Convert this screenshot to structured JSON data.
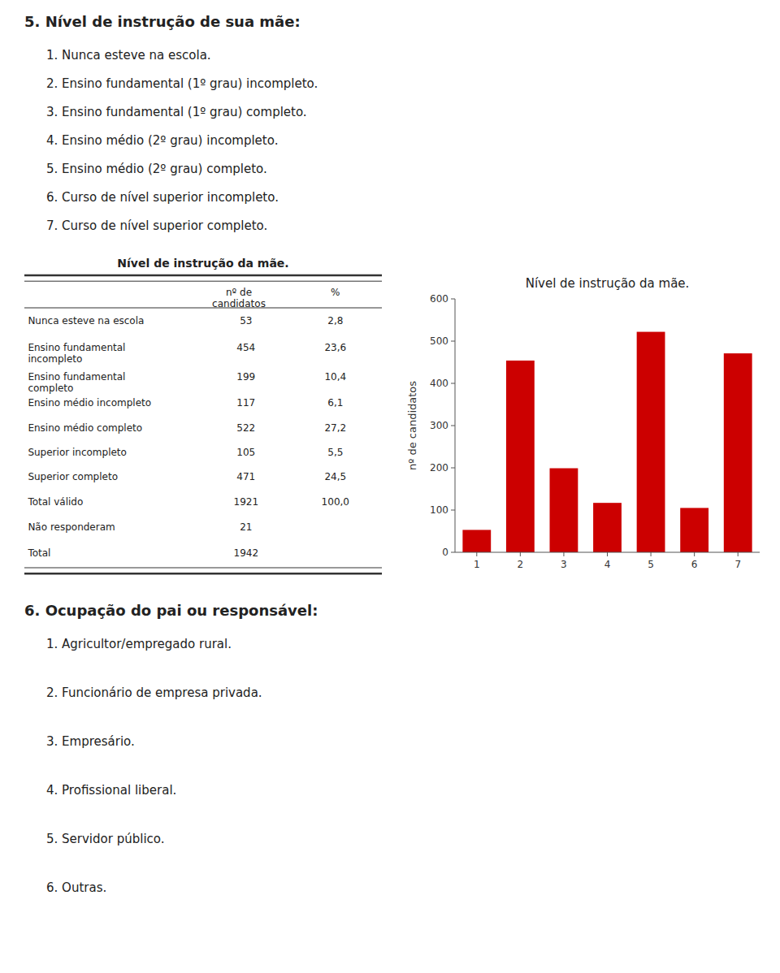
{
  "chart_data": {
    "type": "bar",
    "title": "Nível de instrução da mãe.",
    "categories": [
      "1",
      "2",
      "3",
      "4",
      "5",
      "6",
      "7"
    ],
    "values": [
      53,
      454,
      199,
      117,
      522,
      105,
      471
    ],
    "color": "#cc0000",
    "ylabel": "nº de candidatos",
    "ylim": [
      0,
      600
    ],
    "yticks": [
      0,
      100,
      200,
      300,
      400,
      500,
      600
    ],
    "grid": false
  },
  "questions": [
    {
      "title": "5. Nível de instrução de sua mãe:",
      "items": [
        "1. Nunca esteve na escola.",
        "2. Ensino fundamental (1º grau) incompleto.",
        "3. Ensino fundamental (1º grau) completo.",
        "4. Ensino médio (2º grau) incompleto.",
        "5. Ensino médio (2º grau) completo.",
        "6. Curso de nível superior incompleto.",
        "7. Curso de nível superior completo."
      ]
    },
    {
      "title": "6. Ocupação do pai ou responsável:",
      "items": [
        "1. Agricultor/empregado rural.",
        "2. Funcionário de empresa privada.",
        "3. Empresário.",
        "4. Profissional liberal.",
        "5. Servidor público.",
        "6. Outras."
      ]
    }
  ],
  "table": {
    "title": "Nível de instrução da mãe.",
    "columns": [
      "nº de\ncandidatos",
      "%"
    ],
    "rows": [
      [
        "Nunca esteve na escola",
        "53",
        "2,8"
      ],
      [
        "Ensino fundamental\nincompleto",
        "454",
        "23,6"
      ],
      [
        "Ensino fundamental\ncompleto",
        "199",
        "10,4"
      ],
      [
        "Ensino médio incompleto",
        "117",
        "6,1"
      ],
      [
        "Ensino médio completo",
        "522",
        "27,2"
      ],
      [
        "Superior incompleto",
        "105",
        "5,5"
      ],
      [
        "Superior completo",
        "471",
        "24,5"
      ],
      [
        "Total válido",
        "1921",
        "100,0"
      ],
      [
        "Não responderam",
        "21",
        null
      ],
      [
        "Total",
        "1942",
        null
      ]
    ]
  }
}
